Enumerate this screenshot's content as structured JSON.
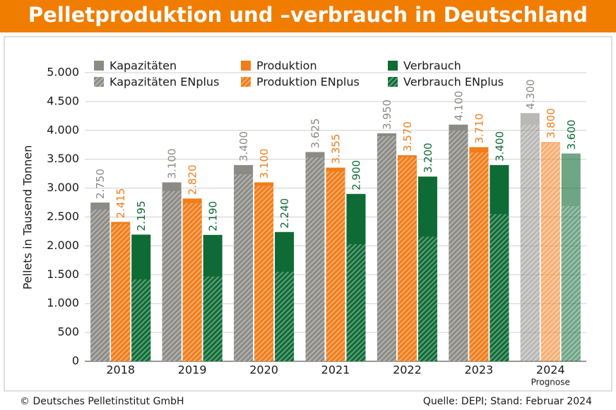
{
  "chart_data": {
    "type": "bar",
    "title": "Pelletproduktion und –verbrauch in Deutschland",
    "y_label": "Pellets in Tausend Tonnen",
    "categories": [
      "2018",
      "2019",
      "2020",
      "2021",
      "2022",
      "2023",
      "2024"
    ],
    "x_sublabels": [
      null,
      null,
      null,
      null,
      null,
      null,
      "Prognose"
    ],
    "series": [
      {
        "name": "Kapazitäten",
        "color": "#8c8a85",
        "values": [
          2750,
          3100,
          3400,
          3625,
          3950,
          4100,
          4300
        ],
        "value_labels": [
          "2.750",
          "3.100",
          "3.400",
          "3.625",
          "3.950",
          "4.100",
          "4.300"
        ],
        "subset": {
          "name": "Kapazitäten ENplus",
          "values": [
            2630,
            2950,
            3240,
            3530,
            3900,
            4000,
            4100
          ]
        }
      },
      {
        "name": "Produktion",
        "color": "#f07d1a",
        "values": [
          2415,
          2820,
          3100,
          3355,
          3570,
          3710,
          3800
        ],
        "value_labels": [
          "2.415",
          "2.820",
          "3.100",
          "3.355",
          "3.570",
          "3.710",
          "3.800"
        ],
        "subset": {
          "name": "Produktion ENplus",
          "values": [
            2380,
            2740,
            3040,
            3290,
            3540,
            3620,
            3780
          ]
        }
      },
      {
        "name": "Verbrauch",
        "color": "#0e6b35",
        "values": [
          2195,
          2190,
          2240,
          2900,
          3200,
          3400,
          3600
        ],
        "value_labels": [
          "2.195",
          "2.190",
          "2.240",
          "2.900",
          "3.200",
          "3.400",
          "3.600"
        ],
        "subset": {
          "name": "Verbrauch ENplus",
          "values": [
            1420,
            1470,
            1550,
            2030,
            2160,
            2550,
            2690
          ]
        }
      }
    ],
    "ylim": [
      0,
      5000
    ],
    "yticks": [
      0,
      500,
      {
        "value": 1000,
        "label": "1.000"
      },
      {
        "value": 1500,
        "label": "1.500"
      },
      {
        "value": 2000,
        "label": "2.000"
      },
      {
        "value": 2500,
        "label": "2.500"
      },
      {
        "value": 3000,
        "label": "3.000"
      },
      {
        "value": 3500,
        "label": "3.500"
      },
      {
        "value": 4000,
        "label": "4.000"
      },
      {
        "value": 4500,
        "label": "4.500"
      },
      {
        "value": 5000,
        "label": "5.000"
      }
    ],
    "grid": true,
    "footer_left": "© Deutsches Pelletinstitut GmbH",
    "footer_right": "Quelle: DEPI; Stand: Februar 2024"
  }
}
